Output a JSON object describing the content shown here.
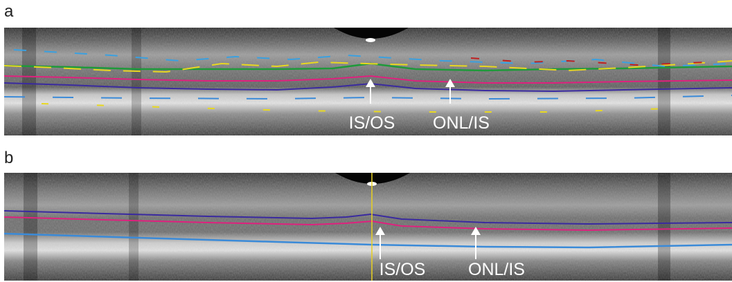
{
  "panels": [
    {
      "label": "a",
      "annotations": [
        "IS/OS",
        "ONL/IS"
      ]
    },
    {
      "label": "b",
      "annotations": [
        "IS/OS",
        "ONL/IS"
      ]
    }
  ]
}
